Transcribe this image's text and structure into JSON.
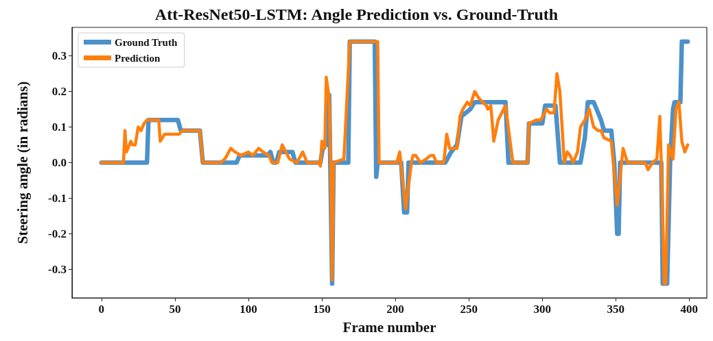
{
  "chart_data": {
    "type": "line",
    "title": "Att-ResNet50-LSTM: Angle Prediction vs. Ground-Truth",
    "xlabel": "Frame number",
    "ylabel": "Steering angle (in radians)",
    "xlim": [
      -20,
      412
    ],
    "xticks": [
      0,
      50,
      100,
      150,
      200,
      250,
      300,
      350,
      400
    ],
    "ylim": [
      -0.38,
      0.38
    ],
    "yticks": [
      {
        "value": -0.3,
        "label": "-0.3"
      },
      {
        "value": -0.2,
        "label": "-0.2"
      },
      {
        "value": -0.1,
        "label": "-0.1"
      },
      {
        "value": 0,
        "label": "0.0"
      },
      {
        "value": 0.1,
        "label": "0.1"
      },
      {
        "value": 0.2,
        "label": "0.2"
      },
      {
        "value": 0.3,
        "label": "0.3"
      }
    ],
    "grid": false,
    "legend": "top left",
    "marker": "none",
    "line_style": "solid",
    "series": [
      {
        "name": "Ground Truth",
        "color": "#4c91c9",
        "x": [
          0,
          31,
          32,
          52,
          54,
          67,
          69,
          92,
          94,
          113,
          115,
          117,
          119,
          121,
          130,
          132,
          149,
          151,
          154,
          155,
          157,
          158,
          168,
          169,
          186,
          187,
          188,
          204,
          206,
          208,
          209,
          234,
          238,
          242,
          245,
          251,
          254,
          275,
          277,
          290,
          291,
          300,
          302,
          309,
          312,
          326,
          329,
          331,
          335,
          340,
          342,
          347,
          349,
          351,
          352,
          353,
          381,
          382,
          385,
          387,
          389,
          390,
          394,
          395,
          399
        ],
        "values": [
          0,
          0,
          0.12,
          0.12,
          0.09,
          0.09,
          0,
          0,
          0.02,
          0.02,
          0.03,
          0,
          0,
          0.03,
          0.03,
          0,
          0,
          0.05,
          0.05,
          0.19,
          -0.34,
          0,
          0,
          0.34,
          0.34,
          -0.04,
          0,
          0,
          -0.14,
          -0.14,
          0,
          0,
          0.03,
          0.05,
          0.13,
          0.15,
          0.17,
          0.17,
          0,
          0,
          0.11,
          0.11,
          0.16,
          0.16,
          0,
          0,
          0.07,
          0.17,
          0.17,
          0.12,
          0.09,
          0.09,
          0,
          -0.2,
          -0.2,
          0,
          0,
          -0.34,
          -0.34,
          0,
          0.15,
          0.17,
          0.17,
          0.34,
          0.34
        ]
      },
      {
        "name": "Prediction",
        "color": "#ff7f0e",
        "x": [
          0,
          15,
          16,
          17,
          20,
          21,
          23,
          25,
          27,
          29,
          31,
          39,
          40,
          43,
          53,
          55,
          67,
          69,
          81,
          84,
          88,
          91,
          95,
          100,
          103,
          107,
          110,
          114,
          116,
          120,
          123,
          128,
          133,
          137,
          140,
          148,
          149,
          150,
          152,
          153,
          155,
          156,
          157,
          158,
          165,
          169,
          188,
          189,
          201,
          203,
          207,
          211,
          212,
          214,
          217,
          221,
          224,
          226,
          228,
          233,
          235,
          237,
          242,
          244,
          246,
          249,
          251,
          254,
          257,
          262,
          263,
          265,
          267,
          270,
          275,
          280,
          290,
          291,
          296,
          299,
          303,
          305,
          308,
          310,
          312,
          315,
          317,
          319,
          321,
          324,
          326,
          329,
          332,
          335,
          338,
          340,
          342,
          347,
          351,
          355,
          358,
          370,
          372,
          375,
          378,
          380,
          381,
          383,
          384,
          386,
          389,
          391,
          393,
          395,
          397,
          399
        ],
        "values": [
          0,
          0,
          0.09,
          0.03,
          0.06,
          0.05,
          0.05,
          0.1,
          0.09,
          0.11,
          0.12,
          0.12,
          0.06,
          0.08,
          0.08,
          0.09,
          0.09,
          0,
          0,
          0.01,
          0.04,
          0.03,
          0.02,
          0.03,
          0.02,
          0.04,
          0.03,
          0.02,
          0,
          0,
          0.05,
          0.01,
          0,
          0.03,
          0,
          0,
          -0.01,
          0.06,
          0.04,
          0.24,
          0.18,
          0,
          -0.33,
          0,
          0.01,
          0.34,
          0.34,
          0,
          0,
          0.03,
          -0.13,
          0,
          0.02,
          0.02,
          0,
          0.01,
          0.02,
          0.02,
          0,
          0,
          0.08,
          0.04,
          0.04,
          0.13,
          0.15,
          0.17,
          0.16,
          0.2,
          0.18,
          0.16,
          0.15,
          0.16,
          0.06,
          0.12,
          0.16,
          0,
          0,
          0.11,
          0.12,
          0.12,
          0.15,
          0.14,
          0.14,
          0.25,
          0.2,
          0,
          0.03,
          0.02,
          0,
          0.03,
          0.1,
          0.12,
          0.15,
          0.1,
          0.09,
          0.09,
          0.07,
          0.06,
          -0.12,
          0.04,
          0,
          0,
          -0.02,
          0,
          0.01,
          0.13,
          0,
          -0.34,
          -0.34,
          0.05,
          0.01,
          0.15,
          0.17,
          0.06,
          0.03,
          0.05
        ]
      }
    ]
  }
}
